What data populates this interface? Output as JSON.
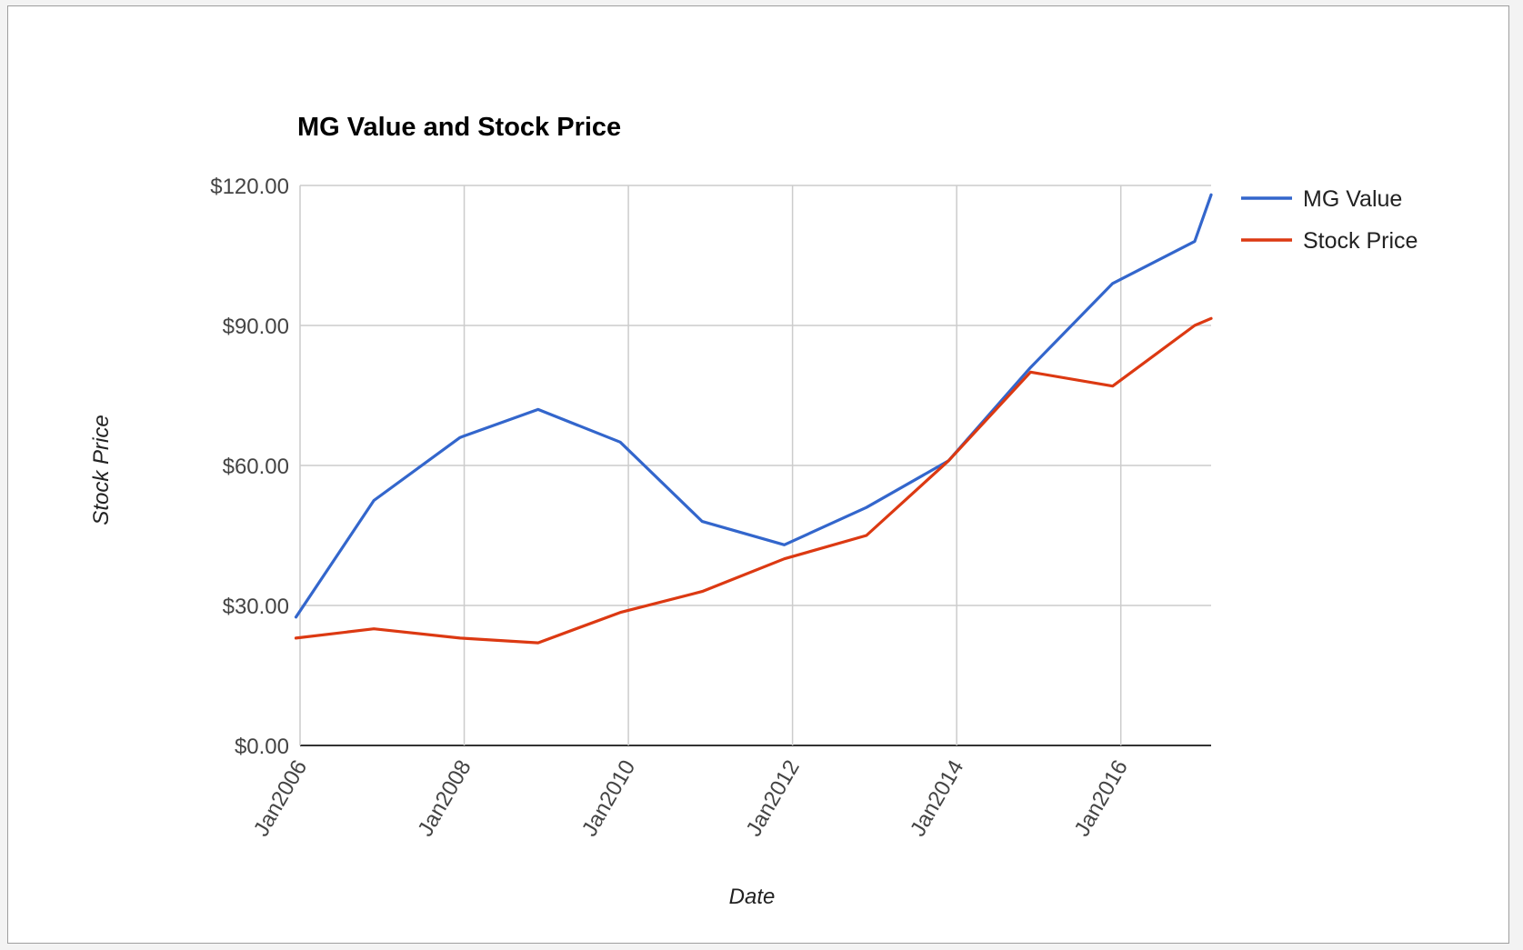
{
  "chart_data": {
    "type": "line",
    "title": "MG Value and Stock Price",
    "xlabel": "Date",
    "ylabel": "Stock Price",
    "x_ticks": [
      "Jan2006",
      "Jan2008",
      "Jan2010",
      "Jan2012",
      "Jan2014",
      "Jan2016"
    ],
    "x_tick_years": [
      2006,
      2008,
      2010,
      2012,
      2014,
      2016
    ],
    "xlim": [
      2006,
      2017.1
    ],
    "ylim": [
      0,
      120
    ],
    "y_ticks": [
      0,
      30,
      60,
      90,
      120
    ],
    "y_tick_labels": [
      "$0.00",
      "$30.00",
      "$60.00",
      "$90.00",
      "$120.00"
    ],
    "grid": true,
    "legend_position": "right",
    "series": [
      {
        "name": "MG Value",
        "color": "#3366cc",
        "x": [
          2005.95,
          2006.9,
          2007.95,
          2008.9,
          2009.9,
          2010.9,
          2011.9,
          2012.9,
          2013.9,
          2014.9,
          2015.9,
          2016.9,
          2017.1
        ],
        "y": [
          27.5,
          52.5,
          66,
          72,
          65,
          48,
          43,
          51,
          61,
          81,
          99,
          108,
          118
        ]
      },
      {
        "name": "Stock Price",
        "color": "#dc3912",
        "x": [
          2005.95,
          2006.9,
          2007.95,
          2008.9,
          2009.9,
          2010.9,
          2011.9,
          2012.9,
          2013.9,
          2014.9,
          2015.9,
          2016.9,
          2017.1
        ],
        "y": [
          23,
          25,
          23,
          22,
          28.5,
          33,
          40,
          45,
          61,
          80,
          77,
          90,
          91.5
        ]
      }
    ]
  }
}
